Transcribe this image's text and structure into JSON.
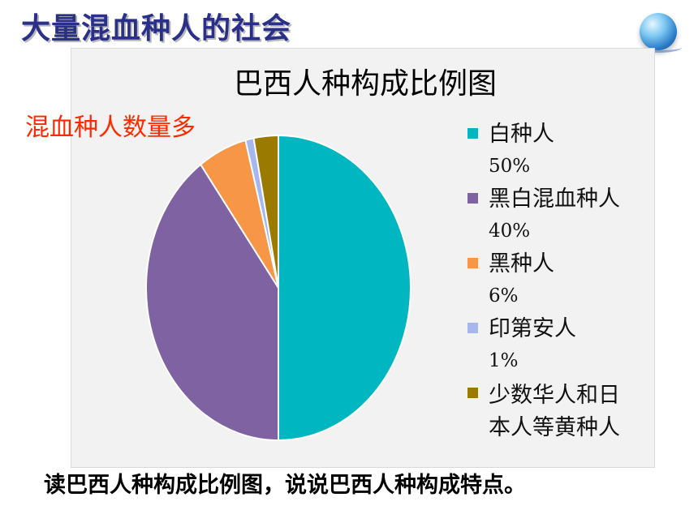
{
  "slide_title": "大量混血种人的社会",
  "annotation": "混血种人数量多",
  "question": "读巴西人种构成比例图，说说巴西人种构成特点。",
  "chart_data": {
    "type": "pie",
    "title": "巴西人种构成比例图",
    "slices": [
      {
        "name": "白种人",
        "value": 50,
        "label": "50%",
        "color": "#00b6c1"
      },
      {
        "name": "黑白混血种人",
        "value": 40,
        "label": "40%",
        "color": "#7f62a1"
      },
      {
        "name": "黑种人",
        "value": 6,
        "label": "6%",
        "color": "#f79646"
      },
      {
        "name": "印第安人",
        "value": 1,
        "label": "1%",
        "color": "#a6b7f0"
      },
      {
        "name": "少数华人和日本人等黄种人",
        "value": 3,
        "label": "",
        "color": "#9a7b00"
      }
    ],
    "legend_position": "right",
    "start": "top",
    "direction": "clockwise"
  }
}
